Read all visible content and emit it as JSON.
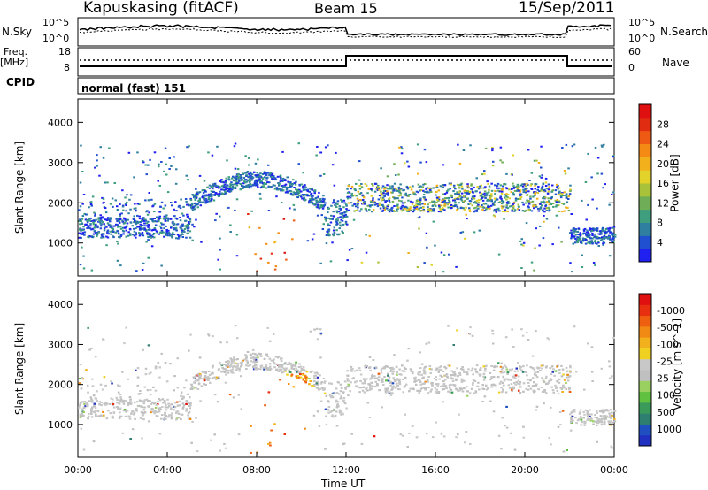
{
  "header": {
    "station": "Kapuskasing (fitACF)",
    "beam": "Beam 15",
    "date": "15/Sep/2011"
  },
  "noise_panel": {
    "left_label": "N.Sky",
    "right_label": "N.Search",
    "left_ticks": [
      "10^5",
      "10^0"
    ],
    "right_ticks": [
      "10^5",
      "10^0"
    ]
  },
  "freq_panel": {
    "left_label_1": "Freq.",
    "left_label_2": "[MHz]",
    "left_ticks": [
      "18",
      "8"
    ],
    "right_ticks": [
      "60",
      "0"
    ],
    "right_label": "Nave"
  },
  "cpid": {
    "label": "CPID",
    "value": "normal (fast) 151"
  },
  "chart_data": [
    {
      "type": "heatmap",
      "title": "",
      "xlabel": "Time UT",
      "ylabel": "Slant Range [km]",
      "xticks": [
        "00:00",
        "04:00",
        "08:00",
        "12:00",
        "16:00",
        "20:00",
        "00:00"
      ],
      "x_range_hours": [
        0,
        24
      ],
      "yticks": [
        1000,
        2000,
        3000,
        4000
      ],
      "y_range_km": [
        180,
        4580
      ],
      "colorbar": {
        "label": "Power [dB]",
        "ticks": [
          "4",
          "8",
          "12",
          "16",
          "20",
          "24",
          "28"
        ],
        "colors": [
          "#2020f0",
          "#2050d0",
          "#2f7fa0",
          "#3e9e7e",
          "#6fae56",
          "#a8c23a",
          "#e2d22a",
          "#f2b01c",
          "#f48a14",
          "#ee5a14",
          "#e02c10",
          "#e01010"
        ]
      }
    },
    {
      "type": "heatmap",
      "title": "",
      "xlabel": "Time UT",
      "ylabel": "Slant Range [km]",
      "xticks": [
        "00:00",
        "04:00",
        "08:00",
        "12:00",
        "16:00",
        "20:00",
        "00:00"
      ],
      "x_range_hours": [
        0,
        24
      ],
      "yticks": [
        1000,
        2000,
        3000,
        4000
      ],
      "y_range_km": [
        180,
        4580
      ],
      "colorbar": {
        "label": "Velocity [m s^-1]",
        "ticks": [
          "1000",
          "500",
          "100",
          "25",
          "-25",
          "-100",
          "-500",
          "-1000"
        ],
        "colors": [
          "#2030c0",
          "#2050c0",
          "#2f7f70",
          "#3a9a5a",
          "#60c040",
          "#9ad060",
          "#c0c0c0",
          "#c8c8c8",
          "#f0d020",
          "#f2b01c",
          "#f08a14",
          "#ee6010",
          "#e83010",
          "#e01010"
        ]
      }
    }
  ]
}
